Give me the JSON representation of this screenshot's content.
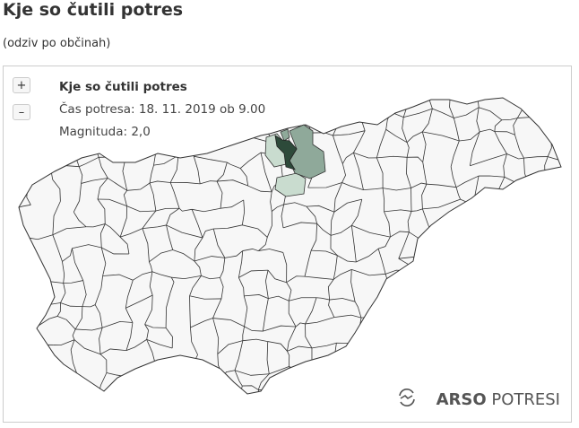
{
  "title": "Kje so čutili potres",
  "subtitle": "(odziv po občinah)",
  "map": {
    "zoom_in": "+",
    "zoom_out": "–",
    "info": {
      "heading": "Kje so čutili potres",
      "time": "Čas potresa: 18. 11. 2019 ob 9.00",
      "magnitude": "Magnituda: 2,0"
    },
    "colors": {
      "default": "#f7f7f7",
      "border": "#333333",
      "strong": "#2d4a3a",
      "medium": "#8fa99a",
      "light": "#c9dccf"
    },
    "logo": {
      "bold": "ARSO",
      "light": "POTRESI",
      "icon": "earthquake-wave-icon"
    }
  }
}
